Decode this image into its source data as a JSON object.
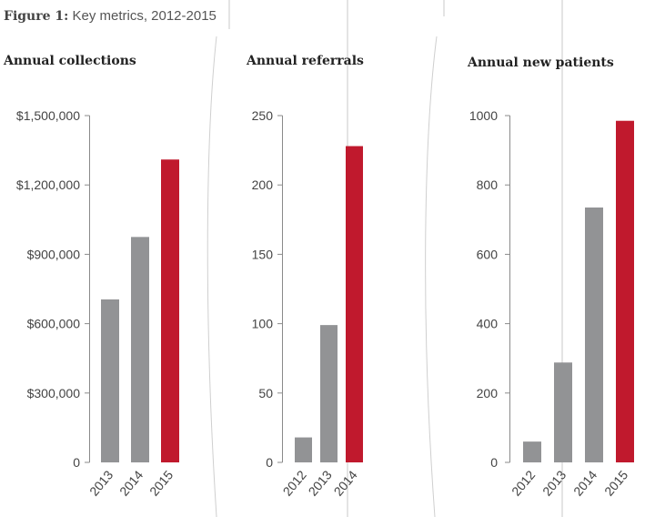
{
  "figure": {
    "label": "Figure 1:",
    "title": "Key metrics, 2012-2015"
  },
  "colors": {
    "gray_bar": "#929395",
    "highlight_bar": "#c0192d",
    "axis": "#8a8a8a"
  },
  "chart_data": [
    {
      "type": "bar",
      "title": "Annual collections",
      "categories": [
        "2013",
        "2014",
        "2015"
      ],
      "values": [
        705000,
        975000,
        1310000
      ],
      "highlight_index": 2,
      "ylim": [
        0,
        1500000
      ],
      "yticks": [
        0,
        300000,
        600000,
        900000,
        1200000,
        1500000
      ],
      "ytick_labels": [
        "0",
        "$300,000",
        "$600,000",
        "$900,000",
        "$1,200,000",
        "$1,500,000"
      ],
      "xlabel": "",
      "ylabel": ""
    },
    {
      "type": "bar",
      "title": "Annual referrals",
      "categories": [
        "2012",
        "2013",
        "2014"
      ],
      "values": [
        18,
        99,
        228
      ],
      "highlight_index": 2,
      "ylim": [
        0,
        250
      ],
      "yticks": [
        0,
        50,
        100,
        150,
        200,
        250
      ],
      "ytick_labels": [
        "0",
        "50",
        "100",
        "150",
        "200",
        "250"
      ],
      "xlabel": "",
      "ylabel": ""
    },
    {
      "type": "bar",
      "title": "Annual new patients",
      "categories": [
        "2012",
        "2013",
        "2014",
        "2015"
      ],
      "values": [
        60,
        288,
        735,
        985
      ],
      "highlight_index": 3,
      "ylim": [
        0,
        1000
      ],
      "yticks": [
        0,
        200,
        400,
        600,
        800,
        1000
      ],
      "ytick_labels": [
        "0",
        "200",
        "400",
        "600",
        "800",
        "1000"
      ],
      "xlabel": "",
      "ylabel": ""
    }
  ]
}
